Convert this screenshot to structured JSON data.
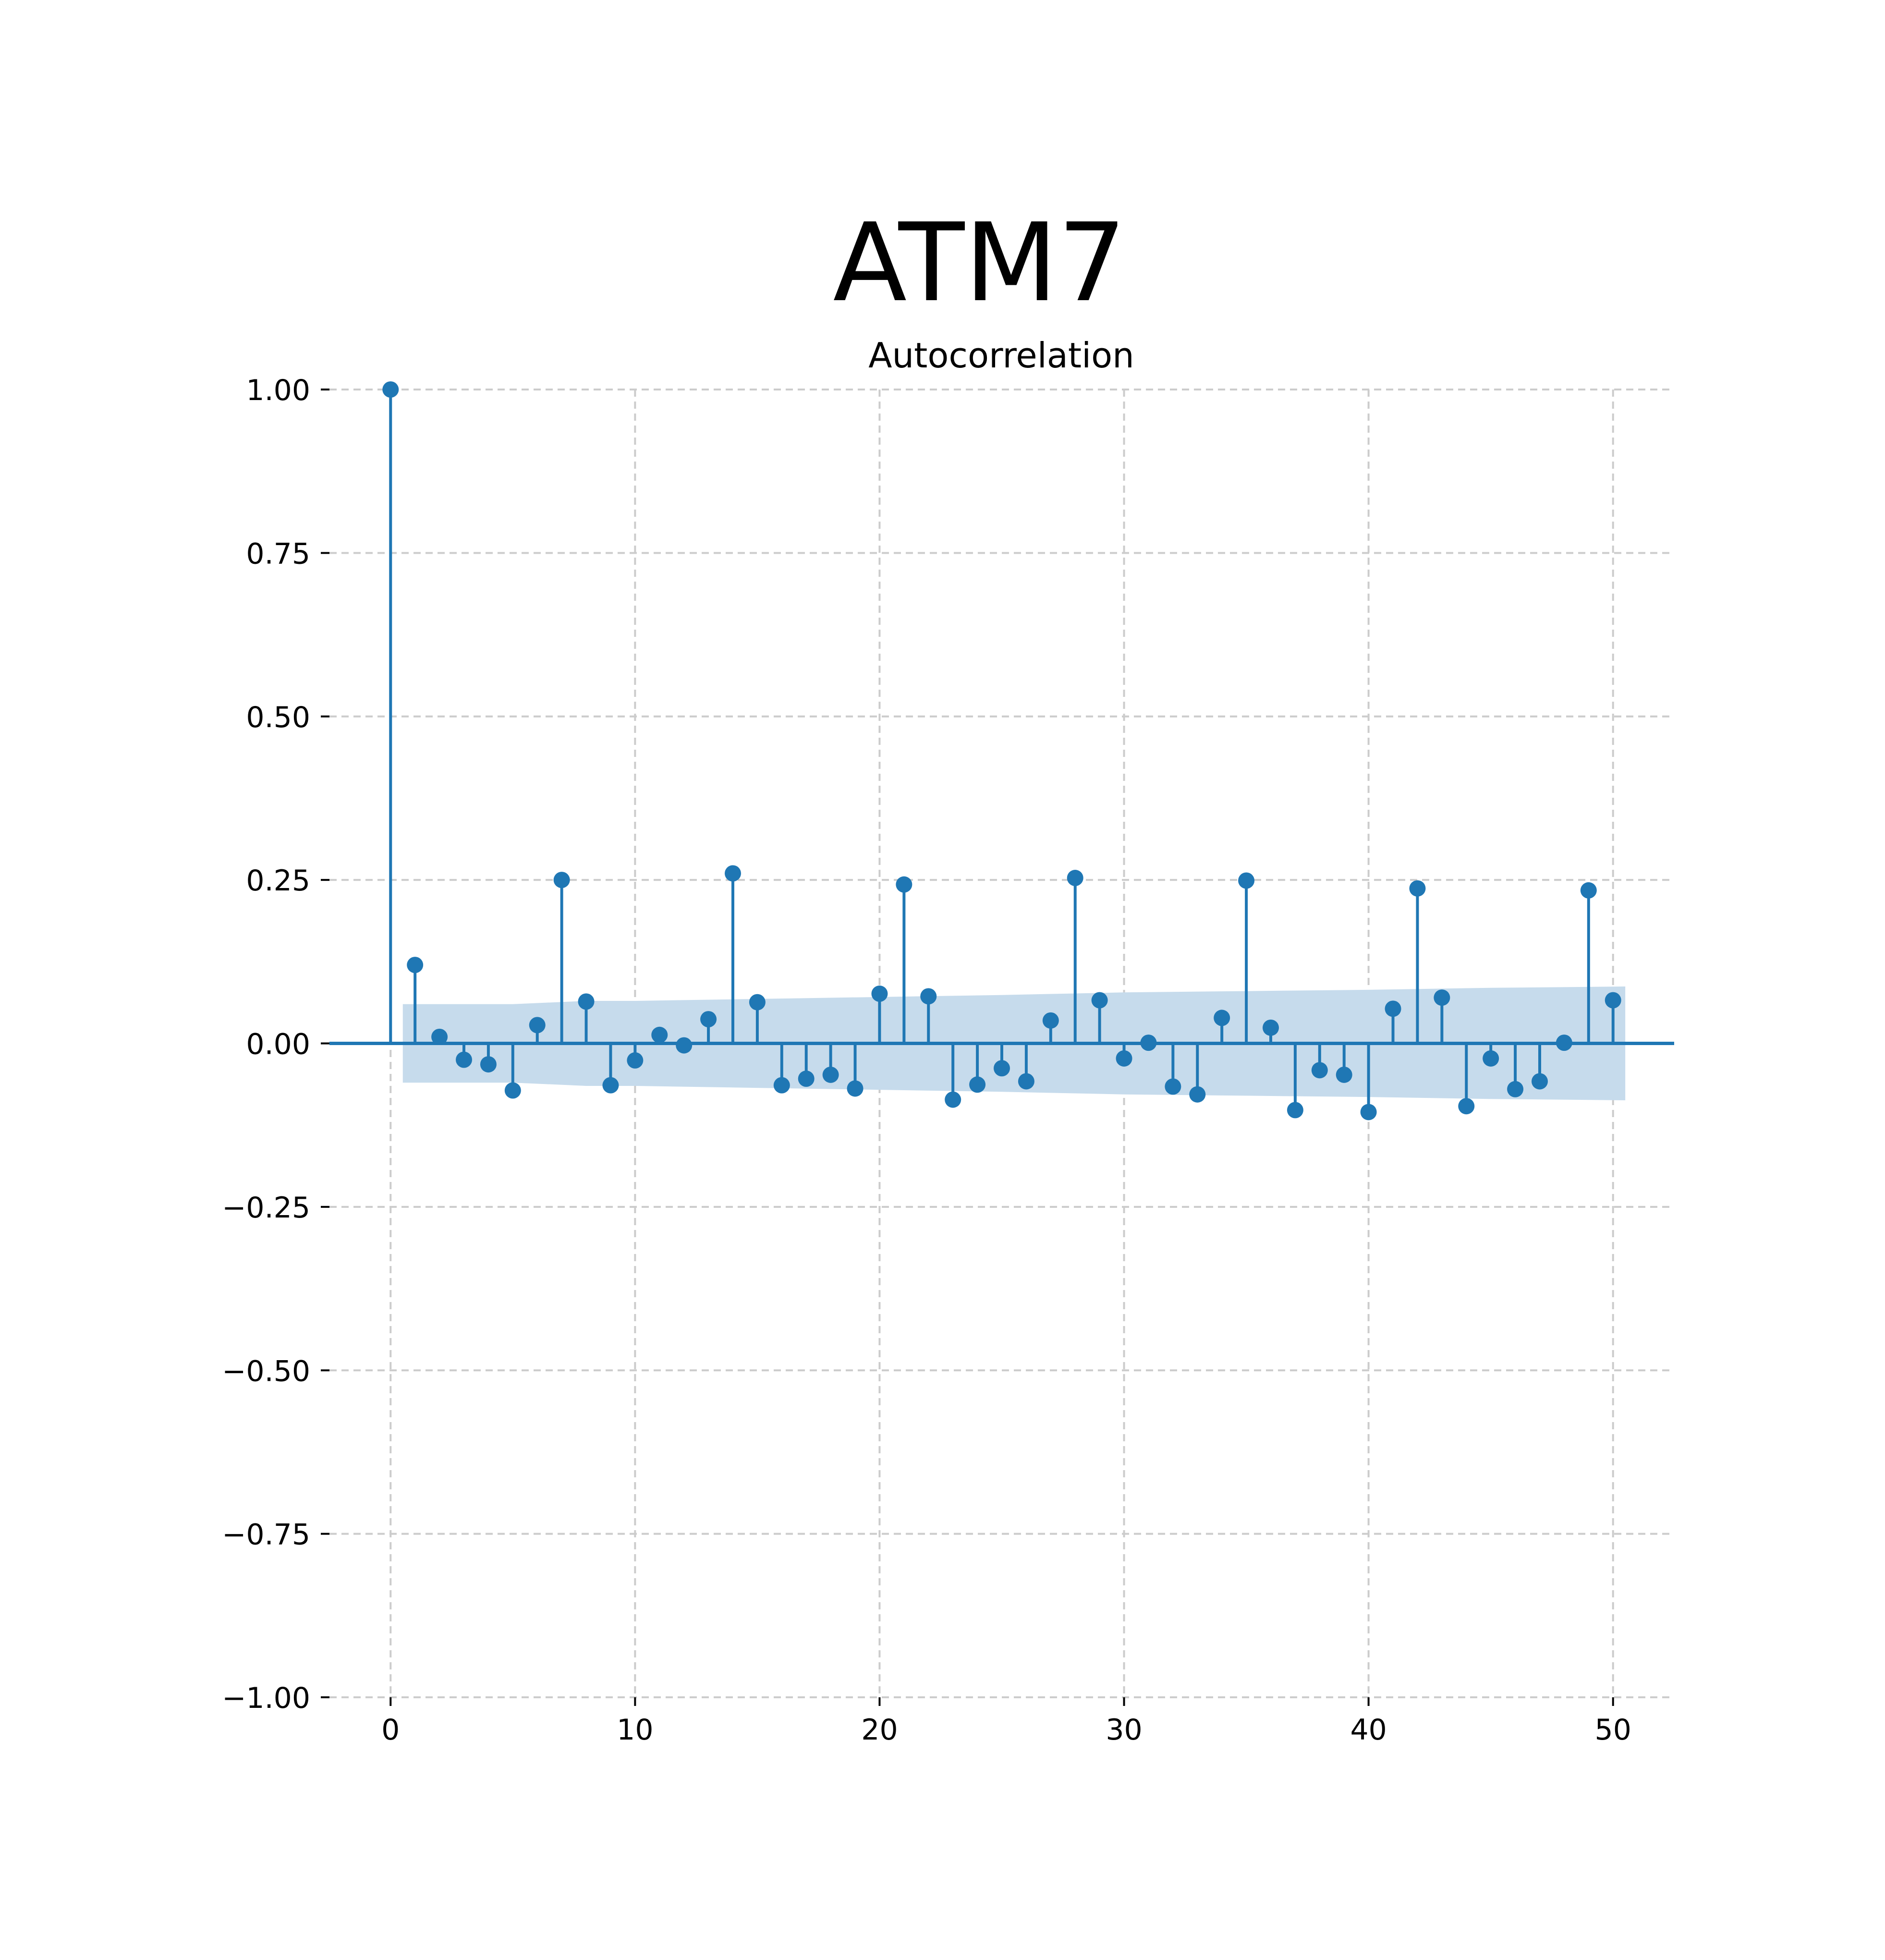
{
  "figure": {
    "title": "ATM7"
  },
  "chart_data": {
    "type": "stem",
    "title": "Autocorrelation",
    "xlabel": "",
    "ylabel": "",
    "xlim": [
      -2.5,
      52.5
    ],
    "ylim": [
      -1.0,
      1.0
    ],
    "x_ticks": [
      0,
      10,
      20,
      30,
      40,
      50
    ],
    "x_tick_labels": [
      "0",
      "10",
      "20",
      "30",
      "40",
      "50"
    ],
    "y_ticks": [
      1.0,
      0.75,
      0.5,
      0.25,
      0.0,
      -0.25,
      -0.5,
      -0.75,
      -1.0
    ],
    "y_tick_labels": [
      "1.00",
      "0.75",
      "0.50",
      "0.25",
      "0.00",
      "−0.25",
      "−0.50",
      "−0.75",
      "−1.00"
    ],
    "grid": true,
    "grid_style": "dashed",
    "colors": {
      "series": "#1f77b4",
      "confidence_band": "#c6dbec",
      "grid": "#cccccc",
      "text": "#000000"
    },
    "lags": [
      0,
      1,
      2,
      3,
      4,
      5,
      6,
      7,
      8,
      9,
      10,
      11,
      12,
      13,
      14,
      15,
      16,
      17,
      18,
      19,
      20,
      21,
      22,
      23,
      24,
      25,
      26,
      27,
      28,
      29,
      30,
      31,
      32,
      33,
      34,
      35,
      36,
      37,
      38,
      39,
      40,
      41,
      42,
      43,
      44,
      45,
      46,
      47,
      48,
      49,
      50
    ],
    "values": [
      1.0,
      0.12,
      0.01,
      -0.025,
      -0.032,
      -0.072,
      0.028,
      0.25,
      0.064,
      -0.064,
      -0.026,
      0.013,
      -0.003,
      0.037,
      0.26,
      0.063,
      -0.064,
      -0.054,
      -0.048,
      -0.069,
      0.076,
      0.243,
      0.072,
      -0.086,
      -0.063,
      -0.038,
      -0.058,
      0.035,
      0.253,
      0.066,
      -0.023,
      0.001,
      -0.066,
      -0.078,
      0.039,
      0.249,
      0.024,
      -0.102,
      -0.041,
      -0.048,
      -0.105,
      0.053,
      0.237,
      0.07,
      -0.096,
      -0.023,
      -0.07,
      -0.058,
      0.001,
      0.234,
      0.066
    ],
    "confidence_interval": {
      "lags": [
        0.5,
        5,
        8,
        10,
        15,
        20,
        25,
        30,
        35,
        40,
        45,
        50.5
      ],
      "upper": [
        0.06,
        0.06,
        0.065,
        0.065,
        0.068,
        0.071,
        0.074,
        0.078,
        0.08,
        0.082,
        0.085,
        0.087
      ],
      "lower": [
        -0.06,
        -0.06,
        -0.065,
        -0.065,
        -0.068,
        -0.071,
        -0.074,
        -0.078,
        -0.08,
        -0.082,
        -0.085,
        -0.087
      ]
    }
  }
}
